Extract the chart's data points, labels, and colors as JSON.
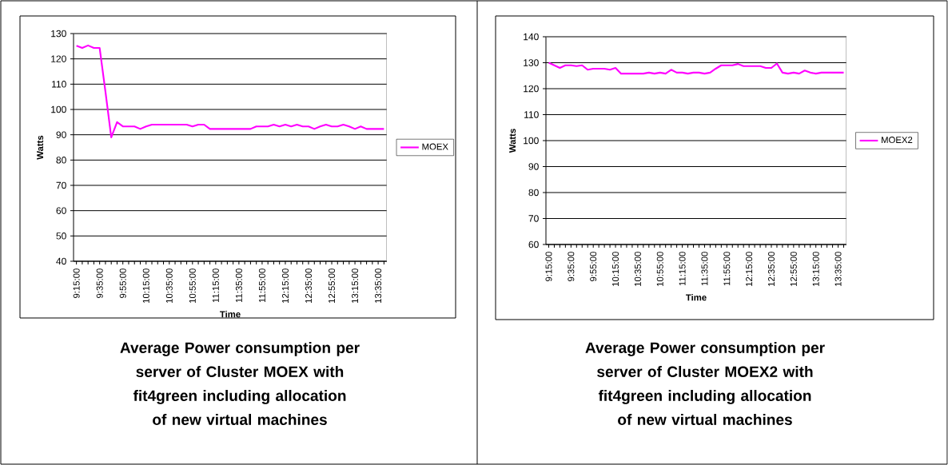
{
  "chart_data": [
    {
      "type": "line",
      "title": "Average Power consumption per server of Cluster MOEX with fit4green including allocation of new virtual machines",
      "xlabel": "Time",
      "ylabel": "Watts",
      "categories": [
        "9:15:00",
        null,
        null,
        null,
        "9:35:00",
        null,
        null,
        null,
        "9:55:00",
        null,
        null,
        null,
        "10:15:00",
        null,
        null,
        null,
        "10:35:00",
        null,
        null,
        null,
        "10:55:00",
        null,
        null,
        null,
        "11:15:00",
        null,
        null,
        null,
        "11:35:00",
        null,
        null,
        null,
        "11:55:00",
        null,
        null,
        null,
        "12:15:00",
        null,
        null,
        null,
        "12:35:00",
        null,
        null,
        null,
        "12:55:00",
        null,
        null,
        null,
        "13:15:00",
        null,
        null,
        null,
        "13:35:00",
        null
      ],
      "series": [
        {
          "name": "MOEX",
          "color": "#ff00ff",
          "values": [
            125.2,
            124.3,
            125.3,
            124.3,
            124.3,
            107,
            89,
            95,
            93.3,
            93.3,
            93.3,
            92.3,
            93.3,
            94,
            94,
            94,
            94,
            94,
            94,
            94,
            93.3,
            94,
            94,
            92.3,
            92.3,
            92.3,
            92.3,
            92.3,
            92.3,
            92.3,
            92.3,
            93.3,
            93.3,
            93.3,
            94,
            93.3,
            94,
            93.3,
            94,
            93.3,
            93.3,
            92.3,
            93.3,
            94,
            93.3,
            93.3,
            94,
            93.3,
            92.3,
            93.3,
            92.3,
            92.3,
            92.3,
            92.3
          ]
        }
      ],
      "ylim": [
        40,
        130
      ],
      "yticks": [
        40,
        50,
        60,
        70,
        80,
        90,
        100,
        110,
        120,
        130
      ],
      "grid": "y",
      "legend": "right",
      "marker": "none",
      "line_style": "solid"
    },
    {
      "type": "line",
      "title": "Average Power consumption per server of Cluster MOEX2 with fit4green including allocation of new virtual machines",
      "xlabel": "Time",
      "ylabel": "Watts",
      "categories": [
        "9:15:00",
        null,
        null,
        null,
        "9:35:00",
        null,
        null,
        null,
        "9:55:00",
        null,
        null,
        null,
        "10:15:00",
        null,
        null,
        null,
        "10:35:00",
        null,
        null,
        null,
        "10:55:00",
        null,
        null,
        null,
        "11:15:00",
        null,
        null,
        null,
        "11:35:00",
        null,
        null,
        null,
        "11:55:00",
        null,
        null,
        null,
        "12:15:00",
        null,
        null,
        null,
        "12:35:00",
        null,
        null,
        null,
        "12:55:00",
        null,
        null,
        null,
        "13:15:00",
        null,
        null,
        null,
        "13:35:00",
        null
      ],
      "series": [
        {
          "name": "MOEX2",
          "color": "#ff00ff",
          "values": [
            130,
            129,
            128,
            129,
            129,
            128.7,
            129,
            127.3,
            127.7,
            127.7,
            127.7,
            127.3,
            128,
            125.8,
            125.8,
            125.8,
            125.8,
            125.8,
            126.2,
            125.8,
            126.2,
            125.8,
            127.3,
            126.2,
            126.2,
            125.8,
            126.2,
            126.2,
            125.8,
            126.2,
            127.7,
            129,
            129,
            129,
            129.5,
            128.7,
            128.7,
            128.7,
            128.7,
            128,
            128,
            129.7,
            126.2,
            125.8,
            126.2,
            125.8,
            127,
            126.2,
            125.8,
            126.2,
            126.2,
            126.2,
            126.2,
            126.2
          ]
        }
      ],
      "ylim": [
        60,
        140
      ],
      "yticks": [
        60,
        70,
        80,
        90,
        100,
        110,
        120,
        130,
        140
      ],
      "grid": "y",
      "legend": "right",
      "marker": "none",
      "line_style": "solid"
    }
  ]
}
